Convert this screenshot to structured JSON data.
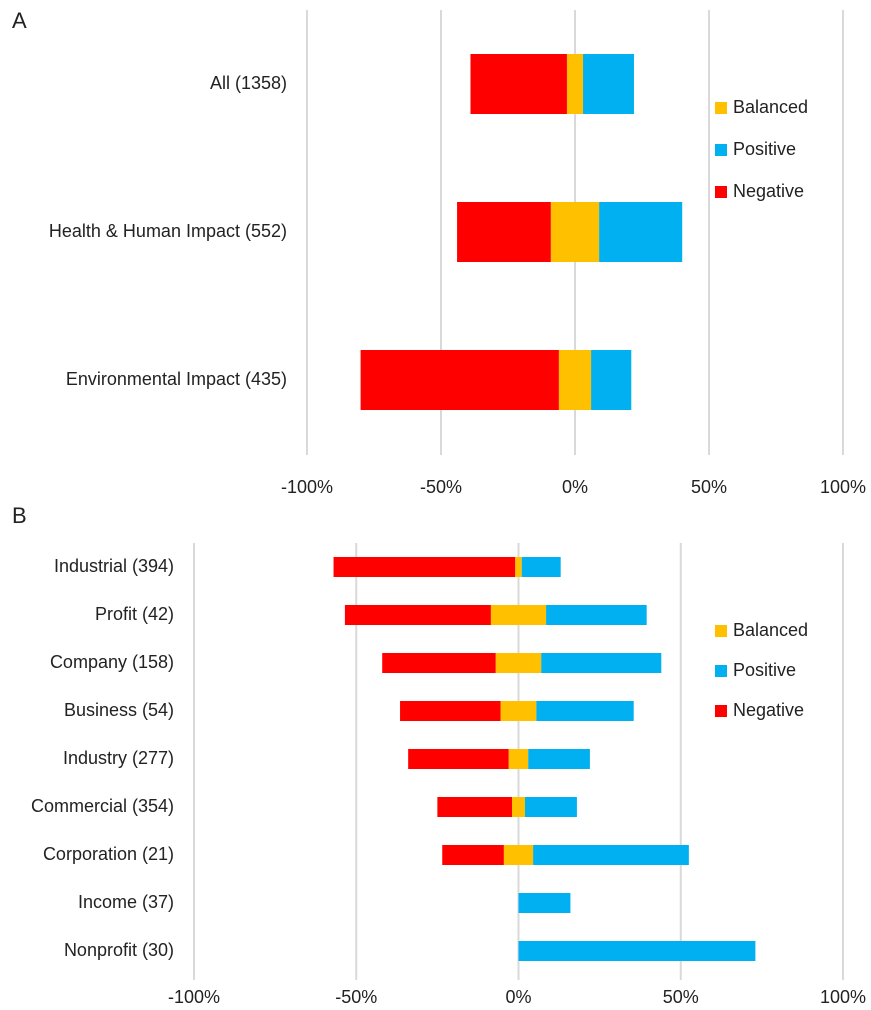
{
  "chart_data": [
    {
      "type": "diverging-bar",
      "title": "A",
      "categories": [
        "All (1358)",
        "Health & Human Impact (552)",
        "Environmental Impact (435)"
      ],
      "series": [
        {
          "name": "Balanced",
          "color": "#ffc000",
          "values": [
            6,
            18,
            12
          ]
        },
        {
          "name": "Positive",
          "color": "#00b0f0",
          "values": [
            19,
            31,
            15
          ]
        },
        {
          "name": "Negative",
          "color": "#ff0000",
          "values": [
            36,
            35,
            74
          ]
        }
      ],
      "xlim": [
        -100,
        100
      ],
      "xticks": [
        {
          "value": -100,
          "label": "-100%"
        },
        {
          "value": -50,
          "label": "-50%"
        },
        {
          "value": 0,
          "label": "0%"
        },
        {
          "value": 50,
          "label": "50%"
        },
        {
          "value": 100,
          "label": "100%"
        }
      ],
      "grid": true,
      "legend": "right"
    },
    {
      "type": "diverging-bar",
      "title": "B",
      "categories": [
        "Industrial (394)",
        "Profit (42)",
        "Company (158)",
        "Business (54)",
        "Industry (277)",
        "Commercial (354)",
        "Corporation (21)",
        "Income (37)",
        "Nonprofit (30)"
      ],
      "series": [
        {
          "name": "Balanced",
          "color": "#ffc000",
          "values": [
            2,
            17,
            14,
            11,
            6,
            4,
            9,
            0,
            0
          ]
        },
        {
          "name": "Positive",
          "color": "#00b0f0",
          "values": [
            12,
            31,
            37,
            30,
            19,
            16,
            48,
            16,
            73
          ]
        },
        {
          "name": "Negative",
          "color": "#ff0000",
          "values": [
            56,
            45,
            35,
            31,
            31,
            23,
            19,
            0,
            0
          ]
        }
      ],
      "xlim": [
        -100,
        100
      ],
      "xticks": [
        {
          "value": -100,
          "label": "-100%"
        },
        {
          "value": -50,
          "label": "-50%"
        },
        {
          "value": 0,
          "label": "0%"
        },
        {
          "value": 50,
          "label": "50%"
        },
        {
          "value": 100,
          "label": "100%"
        }
      ],
      "grid": true,
      "legend": "right"
    }
  ]
}
